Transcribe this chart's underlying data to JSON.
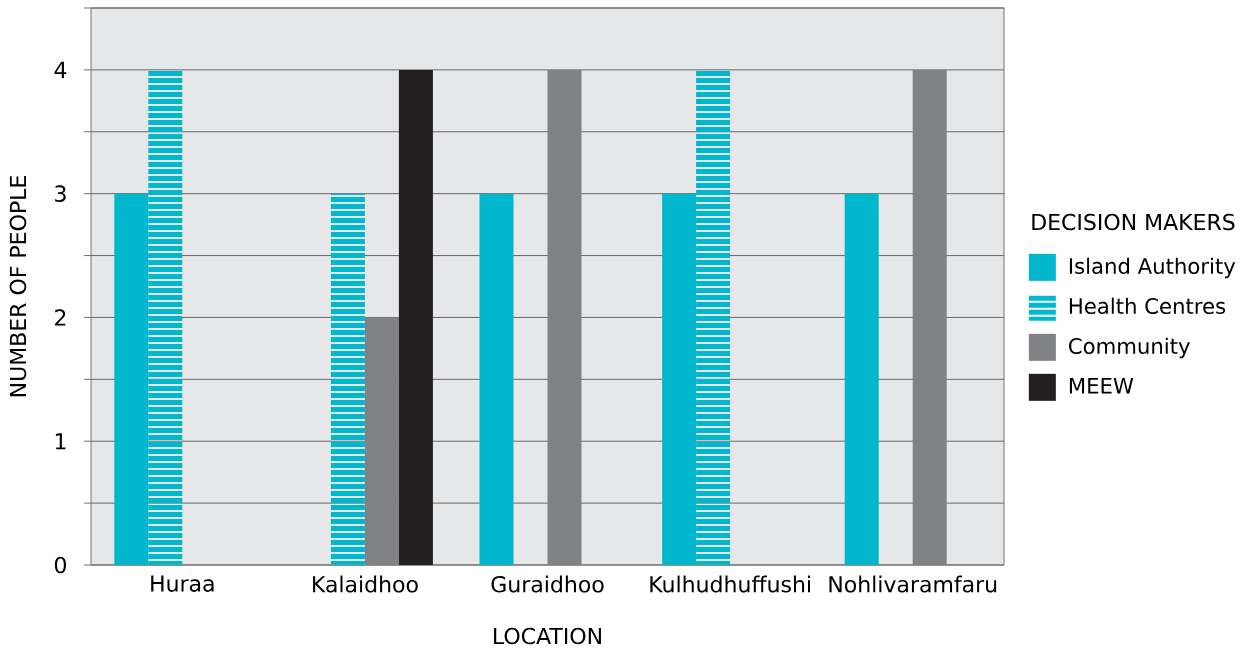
{
  "chart_data": {
    "type": "bar",
    "xlabel": "LOCATION",
    "ylabel": "NUMBER OF PEOPLE",
    "legend_title": "DECISION MAKERS",
    "categories": [
      "Huraa",
      "Kalaidhoo",
      "Guraidhoo",
      "Kulhudhuffushi",
      "Nohlivaramfaru"
    ],
    "series": [
      {
        "name": "Island Authority",
        "color": "#00b7cd",
        "values": [
          3,
          null,
          3,
          3,
          3
        ]
      },
      {
        "name": "Health Centres",
        "color": "#00b7cd",
        "values": [
          4,
          3,
          null,
          4,
          null
        ]
      },
      {
        "name": "Community",
        "color": "#808285",
        "values": [
          null,
          2,
          4,
          null,
          4
        ]
      },
      {
        "name": "MEEW",
        "color": "#231f20",
        "values": [
          null,
          4,
          null,
          null,
          null
        ]
      }
    ],
    "ylim": [
      0,
      4.5
    ],
    "yticks": [
      0,
      {
        "value": 0.5,
        "label": null
      },
      1,
      {
        "value": 1.5,
        "label": null
      },
      2,
      {
        "value": 2.5,
        "label": null
      },
      3,
      {
        "value": 3.5,
        "label": null
      },
      4,
      {
        "value": 4.5,
        "label": null
      }
    ],
    "grid": "y",
    "legend": "right"
  }
}
